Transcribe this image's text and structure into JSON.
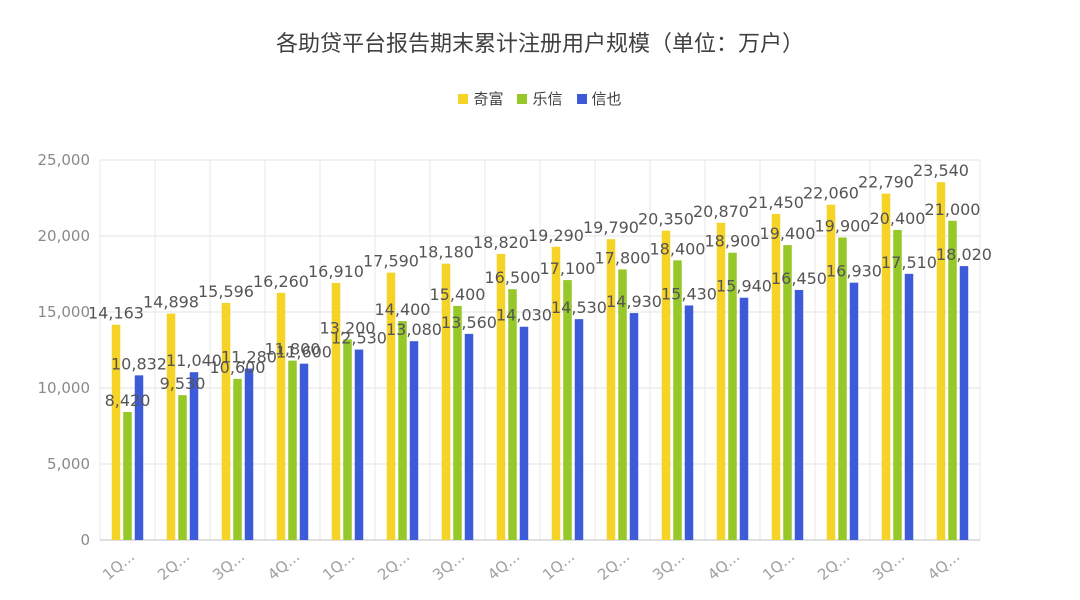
{
  "chart_data": {
    "type": "bar",
    "title": "各助贷平台报告期末累计注册用户规模（单位：万户）",
    "xlabel": "",
    "ylabel": "",
    "ylim": [
      0,
      25000
    ],
    "yticks": [
      "0",
      "5,000",
      "10,000",
      "15,000",
      "20,000",
      "25,000"
    ],
    "ytick_values": [
      0,
      5000,
      10000,
      15000,
      20000,
      25000
    ],
    "categories": [
      "1Q...",
      "2Q...",
      "3Q...",
      "4Q...",
      "1Q...",
      "2Q...",
      "3Q...",
      "4Q...",
      "1Q...",
      "2Q...",
      "3Q...",
      "4Q...",
      "1Q...",
      "2Q...",
      "3Q...",
      "4Q..."
    ],
    "legend_position": "top",
    "grid": true,
    "series": [
      {
        "name": "奇富",
        "color": "#F5D327",
        "values": [
          14163,
          14898,
          15596,
          16260,
          16910,
          17590,
          18180,
          18820,
          19290,
          19790,
          20350,
          20870,
          21450,
          22060,
          22790,
          23540
        ],
        "labels": [
          "14,163",
          "14,898",
          "15,596",
          "16,260",
          "16,910",
          "17,590",
          "18,180",
          "18,820",
          "19,290",
          "19,790",
          "20,350",
          "20,870",
          "21,450",
          "22,060",
          "22,790",
          "23,540"
        ]
      },
      {
        "name": "乐信",
        "color": "#96C82A",
        "values": [
          8420,
          9530,
          10600,
          11800,
          13200,
          14400,
          15400,
          16500,
          17100,
          17800,
          18400,
          18900,
          19400,
          19900,
          20400,
          21000
        ],
        "labels": [
          "8,420",
          "9,530",
          "10,600",
          "11,800",
          "13,200",
          "14,400",
          "15,400",
          "16,500",
          "17,100",
          "17,800",
          "18,400",
          "18,900",
          "19,400",
          "19,900",
          "20,400",
          "21,000"
        ]
      },
      {
        "name": "信也",
        "color": "#3D5BD8",
        "values": [
          10832,
          11040,
          11280,
          11600,
          12530,
          13080,
          13560,
          14030,
          14530,
          14930,
          15430,
          15940,
          16450,
          16930,
          17510,
          18020
        ],
        "labels": [
          "10,832",
          "11,040",
          "11,280",
          "11,600",
          "12,530",
          "13,080",
          "13,560",
          "14,030",
          "14,530",
          "14,930",
          "15,430",
          "15,940",
          "16,450",
          "16,930",
          "17,510",
          "18,020"
        ]
      }
    ]
  }
}
